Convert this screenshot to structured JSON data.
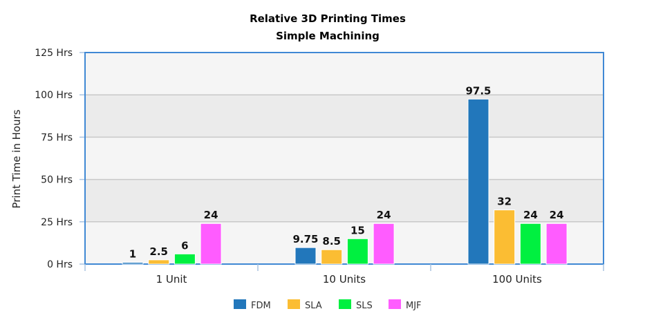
{
  "chart_data": {
    "type": "bar",
    "title": "Relative 3D Printing Times",
    "subtitle": "Simple Machining",
    "xlabel": "",
    "ylabel": "Print Time in Hours",
    "ylim": [
      0,
      125
    ],
    "yticks": [
      0,
      25,
      50,
      75,
      100,
      125
    ],
    "ytick_labels": [
      "0 Hrs",
      "25 Hrs",
      "50 Hrs",
      "75 Hrs",
      "100 Hrs",
      "125 Hrs"
    ],
    "categories": [
      "1 Unit",
      "10 Units",
      "100 Units"
    ],
    "grid": true,
    "legend": "bottom",
    "series": [
      {
        "name": "FDM",
        "color": "#2277bb",
        "values": [
          1,
          9.75,
          97.5
        ],
        "labels": [
          "1",
          "9.75",
          "97.5"
        ]
      },
      {
        "name": "SLA",
        "color": "#fbbd33",
        "values": [
          2.5,
          8.5,
          32
        ],
        "labels": [
          "2.5",
          "8.5",
          "32"
        ]
      },
      {
        "name": "SLS",
        "color": "#00f040",
        "values": [
          6,
          15,
          24
        ],
        "labels": [
          "6",
          "15",
          "24"
        ]
      },
      {
        "name": "MJF",
        "color": "#ff5cff",
        "values": [
          24,
          24,
          24
        ],
        "labels": [
          "24",
          "24",
          "24"
        ]
      }
    ]
  }
}
